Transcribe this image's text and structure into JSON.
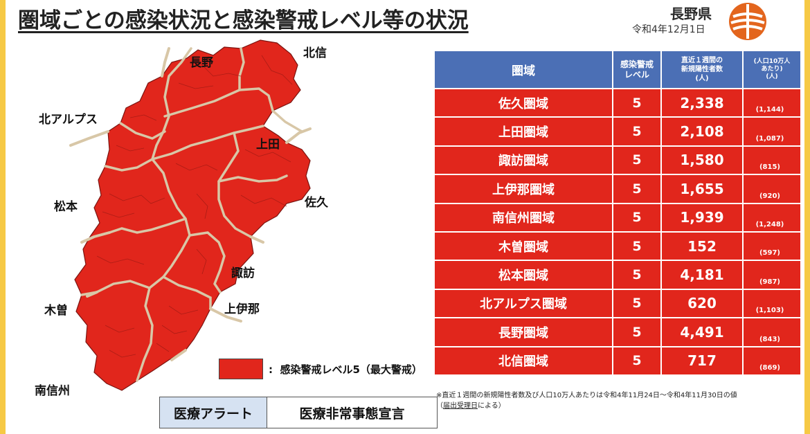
{
  "header": {
    "title": "圏域ごとの感染状況と感染警戒レベル等の状況",
    "prefecture": "長野県",
    "date": "令和4年12月1日"
  },
  "colors": {
    "map_fill": "#e1261c",
    "map_border": "#d8c7a7",
    "table_header": "#4b6fb5",
    "table_cell": "#e1261c",
    "background": "#f6c945",
    "logo": "#e3651d"
  },
  "map_labels": {
    "nagano": "長野",
    "hokushin": "北信",
    "kita_alps": "北アルプス",
    "ueda": "上田",
    "saku": "佐久",
    "matsumoto": "松本",
    "suwa": "諏訪",
    "kiso": "木曽",
    "kamiina": "上伊那",
    "minamishinshu": "南信州"
  },
  "legend": {
    "marker": ":",
    "text": "感染警戒レベル5（最大警戒）"
  },
  "alert": {
    "label": "医療アラート",
    "value": "医療非常事態宣言"
  },
  "table": {
    "headers": {
      "region": "圏域",
      "level_line1": "感染警戒",
      "level_line2": "レベル",
      "cases_line1": "直近１週間の",
      "cases_line2": "新規陽性者数",
      "cases_line3": "(人)",
      "per_line1": "(人口10万人",
      "per_line2": "あたり)",
      "per_line3": "(人)"
    },
    "rows": [
      {
        "name": "佐久圏域",
        "level": "5",
        "cases": "2,338",
        "per100k": "(1,144)"
      },
      {
        "name": "上田圏域",
        "level": "5",
        "cases": "2,108",
        "per100k": "(1,087)"
      },
      {
        "name": "諏訪圏域",
        "level": "5",
        "cases": "1,580",
        "per100k": "(815)"
      },
      {
        "name": "上伊那圏域",
        "level": "5",
        "cases": "1,655",
        "per100k": "(920)"
      },
      {
        "name": "南信州圏域",
        "level": "5",
        "cases": "1,939",
        "per100k": "(1,248)"
      },
      {
        "name": "木曽圏域",
        "level": "5",
        "cases": "152",
        "per100k": "(597)"
      },
      {
        "name": "松本圏域",
        "level": "5",
        "cases": "4,181",
        "per100k": "(987)"
      },
      {
        "name": "北アルプス圏域",
        "level": "5",
        "cases": "620",
        "per100k": "(1,103)"
      },
      {
        "name": "長野圏域",
        "level": "5",
        "cases": "4,491",
        "per100k": "(843)"
      },
      {
        "name": "北信圏域",
        "level": "5",
        "cases": "717",
        "per100k": "(869)"
      }
    ]
  },
  "footnote": {
    "line1": "※直近１週間の新規陽性者数及び人口10万人あたりは令和4年11月24日～令和4年11月30日の値",
    "line2_pre": "（",
    "line2_ul": "届出受理日",
    "line2_post": "による）"
  }
}
